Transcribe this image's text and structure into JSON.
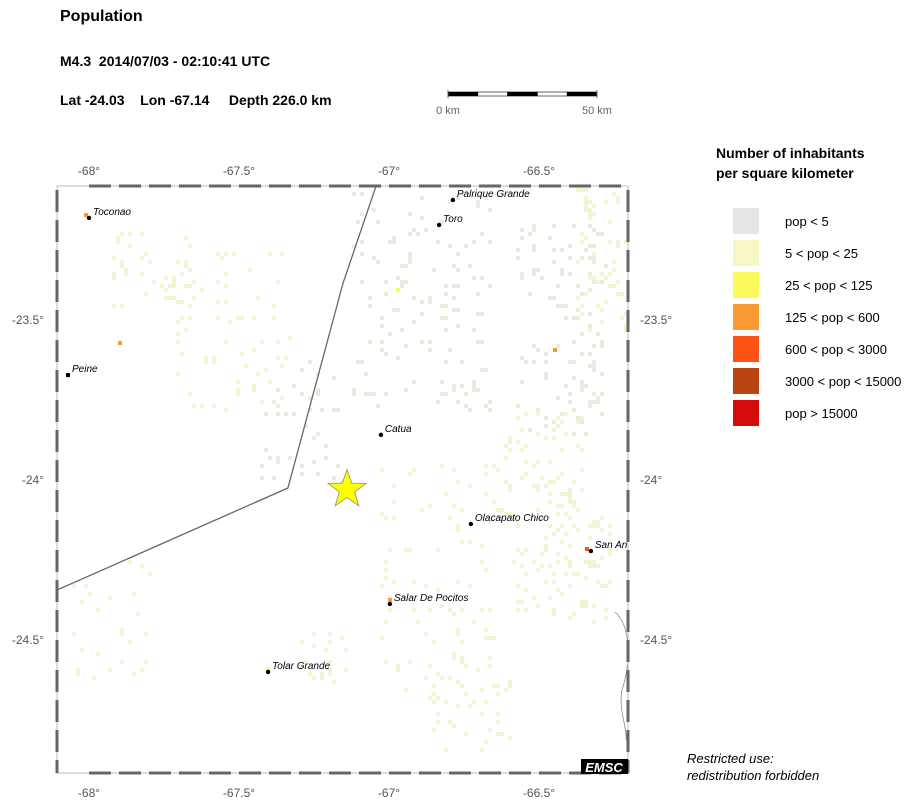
{
  "header": {
    "title": "Population",
    "event": "M4.3  2014/07/03 - 02:10:41 UTC",
    "location": "Lat -24.03    Lon -67.14     Depth 226.0 km"
  },
  "scale_bar": {
    "start_label": "0 km",
    "end_label": "50 km"
  },
  "map": {
    "lon_ticks": [
      {
        "value": -68,
        "label": "-68°"
      },
      {
        "value": -67.5,
        "label": "-67.5°"
      },
      {
        "value": -67,
        "label": "-67°"
      },
      {
        "value": -66.5,
        "label": "-66.5°"
      }
    ],
    "lat_ticks": [
      {
        "value": -23.5,
        "label": "-23.5°"
      },
      {
        "value": -24,
        "label": "-24°"
      },
      {
        "value": -24.5,
        "label": "-24.5°"
      }
    ],
    "extent": {
      "lon": [
        -68.107,
        -66.203
      ],
      "lat": [
        -24.916,
        -23.081
      ]
    },
    "epicenter": {
      "lon": -67.14,
      "lat": -24.03,
      "color": "#ffff00"
    },
    "border": [
      [
        -67.043,
        -23.081
      ],
      [
        -67.153,
        -23.384
      ],
      [
        -67.337,
        -24.025
      ],
      [
        -68.107,
        -24.344
      ]
    ],
    "cities": [
      {
        "name": "Palrique Grande",
        "lon": -66.787,
        "lat": -23.125
      },
      {
        "name": "Toro",
        "lon": -66.833,
        "lat": -23.203
      },
      {
        "name": "Toconao",
        "lon": -68.0,
        "lat": -23.181
      },
      {
        "name": "Peine",
        "lon": -68.07,
        "lat": -23.672
      },
      {
        "name": "Catua",
        "lon": -67.027,
        "lat": -23.859
      },
      {
        "name": "Olacapato Chico",
        "lon": -66.727,
        "lat": -24.1375
      },
      {
        "name": "San An",
        "lon": -66.327,
        "lat": -24.222
      },
      {
        "name": "Salar De Pocitos",
        "lon": -66.997,
        "lat": -24.3875
      },
      {
        "name": "Tolar Grande",
        "lon": -67.403,
        "lat": -24.6
      }
    ],
    "logo": "EMSC"
  },
  "legend": {
    "title_line1": "Number of inhabitants",
    "title_line2": "per square kilometer",
    "items": [
      {
        "label": "pop < 5",
        "color": "#e6e6e6"
      },
      {
        "label": "5 < pop < 25",
        "color": "#f8f8c6"
      },
      {
        "label": "25 < pop < 125",
        "color": "#fafa5c"
      },
      {
        "label": "125 < pop < 600",
        "color": "#fa9a32"
      },
      {
        "label": "600 < pop < 3000",
        "color": "#fc5214"
      },
      {
        "label": "3000 < pop < 15000",
        "color": "#b84412"
      },
      {
        "label": "pop > 15000",
        "color": "#d40c0c"
      }
    ]
  },
  "footer": {
    "line1": "Restricted use:",
    "line2": "redistribution forbidden"
  }
}
